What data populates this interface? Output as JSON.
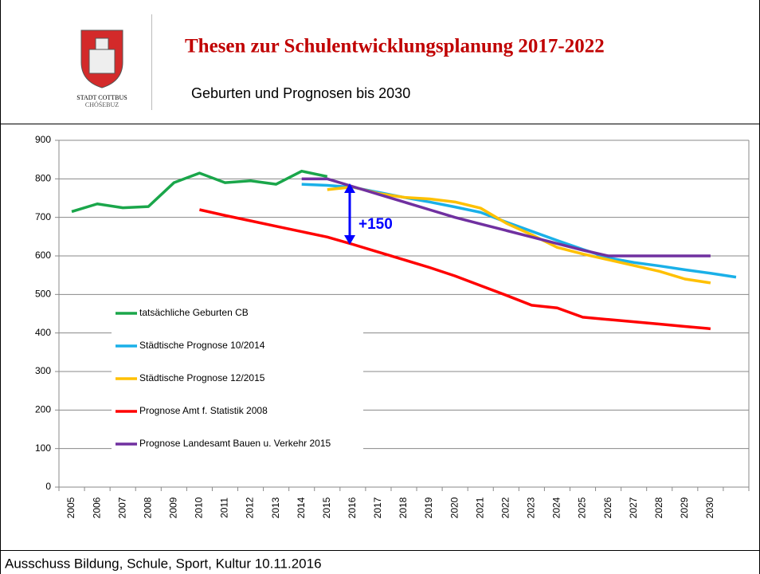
{
  "header": {
    "title": "Thesen zur Schulentwicklungsplanung 2017-2022",
    "subtitle": "Geburten und Prognosen bis 2030",
    "logo_name": "STADT COTTBUS",
    "logo_subname": "CHÓŚEBUZ"
  },
  "footer": {
    "text": "Ausschuss Bildung, Schule, Sport, Kultur 10.11.2016"
  },
  "chart_data": {
    "type": "line",
    "categories": [
      "2005",
      "2006",
      "2007",
      "2008",
      "2009",
      "2010",
      "2011",
      "2012",
      "2013",
      "2014",
      "2015",
      "2016",
      "2017",
      "2018",
      "2019",
      "2020",
      "2021",
      "2022",
      "2023",
      "2024",
      "2025",
      "2026",
      "2027",
      "2028",
      "2029",
      "2030",
      null
    ],
    "series": [
      {
        "name": "tatsächliche Geburten CB",
        "color": "#1aa64a",
        "values": [
          715,
          735,
          725,
          728,
          790,
          815,
          790,
          795,
          786,
          820,
          806,
          null,
          null,
          null,
          null,
          null,
          null,
          null,
          null,
          null,
          null,
          null,
          null,
          null,
          null,
          null,
          null
        ]
      },
      {
        "name": "Städtische Prognose 10/2014",
        "color": "#1ab0e8",
        "values": [
          null,
          null,
          null,
          null,
          null,
          null,
          null,
          null,
          null,
          786,
          783,
          778,
          765,
          752,
          740,
          727,
          713,
          688,
          664,
          640,
          617,
          595,
          583,
          574,
          564,
          555,
          545
        ]
      },
      {
        "name": "Städtische Prognose 12/2015",
        "color": "#ffc000",
        "values": [
          null,
          null,
          null,
          null,
          null,
          null,
          null,
          null,
          null,
          null,
          772,
          779,
          762,
          752,
          748,
          740,
          724,
          685,
          655,
          622,
          605,
          590,
          575,
          560,
          540,
          530,
          null
        ]
      },
      {
        "name": "Prognose Amt f. Statistik 2008",
        "color": "#ff0000",
        "values": [
          null,
          null,
          null,
          null,
          null,
          720,
          705,
          691,
          677,
          663,
          649,
          630,
          610,
          590,
          570,
          548,
          523,
          498,
          472,
          465,
          441,
          435,
          429,
          423,
          417,
          411,
          null
        ]
      },
      {
        "name": "Prognose Landesamt Bauen u. Verkehr 2015",
        "color": "#7030a0",
        "values": [
          null,
          null,
          null,
          null,
          null,
          null,
          null,
          null,
          null,
          800,
          800,
          780,
          760,
          740,
          720,
          700,
          683,
          666,
          649,
          632,
          615,
          600,
          600,
          600,
          600,
          600,
          null
        ]
      }
    ],
    "annotation": "+150",
    "ylim": [
      0,
      900
    ],
    "yticks": [
      0,
      100,
      200,
      300,
      400,
      500,
      600,
      700,
      800,
      900
    ],
    "grid": true,
    "legend": "left"
  }
}
